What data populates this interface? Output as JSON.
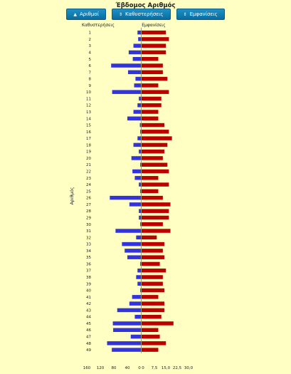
{
  "title": "Έβδομος Αριθμός",
  "controls": {
    "sort_numbers": "Αριθμοί",
    "sort_numbers_icon": "up-arrow-icon",
    "sort_delays": "Καθυστερήσεις",
    "sort_delays_icon": "up-down-arrow-icon",
    "sort_appearances": "Εμφανίσεις",
    "sort_appearances_icon": "up-down-arrow-icon"
  },
  "colors": {
    "delays": "#3333dd",
    "appearances": "#bb0000",
    "background": "#ffffc4"
  },
  "chart_data": {
    "type": "bar",
    "orientation": "horizontal-back-to-back",
    "ylabel": "Αριθμός",
    "categories": [
      "1",
      "2",
      "3",
      "4",
      "5",
      "6",
      "7",
      "8",
      "9",
      "10",
      "11",
      "12",
      "13",
      "14",
      "15",
      "16",
      "17",
      "18",
      "19",
      "20",
      "21",
      "22",
      "23",
      "24",
      "25",
      "26",
      "27",
      "28",
      "29",
      "30",
      "31",
      "32",
      "33",
      "34",
      "35",
      "36",
      "37",
      "38",
      "39",
      "40",
      "41",
      "42",
      "43",
      "44",
      "45",
      "46",
      "47",
      "48",
      "49"
    ],
    "delays": {
      "name": "Καθυστερήσεις",
      "xlim": [
        0,
        160
      ],
      "ticks": [
        "160",
        "120",
        "80",
        "40",
        "0"
      ],
      "values": [
        10,
        8,
        22,
        36,
        24,
        88,
        38,
        16,
        20,
        85,
        6,
        10,
        22,
        40,
        3,
        2,
        10,
        22,
        6,
        28,
        2,
        25,
        18,
        6,
        2,
        92,
        34,
        6,
        6,
        2,
        75,
        14,
        56,
        48,
        40,
        2,
        10,
        14,
        10,
        2,
        26,
        34,
        70,
        18,
        83,
        82,
        30,
        100,
        86
      ]
    },
    "appearances": {
      "name": "Εμφανίσεις",
      "xlim": [
        0,
        30
      ],
      "ticks": [
        "0",
        "7,5",
        "15,0",
        "22,5",
        "30,0"
      ],
      "values": [
        16,
        18,
        16,
        16,
        11,
        14,
        14,
        17,
        11,
        18,
        13,
        13,
        11,
        11,
        15,
        18,
        20,
        17,
        15,
        14,
        17,
        18,
        11,
        18,
        11,
        14,
        19,
        18,
        18,
        14,
        19,
        10,
        15,
        14,
        15,
        12,
        16,
        14,
        14,
        15,
        11,
        15,
        15,
        13,
        21,
        11,
        12,
        16,
        11
      ]
    }
  }
}
